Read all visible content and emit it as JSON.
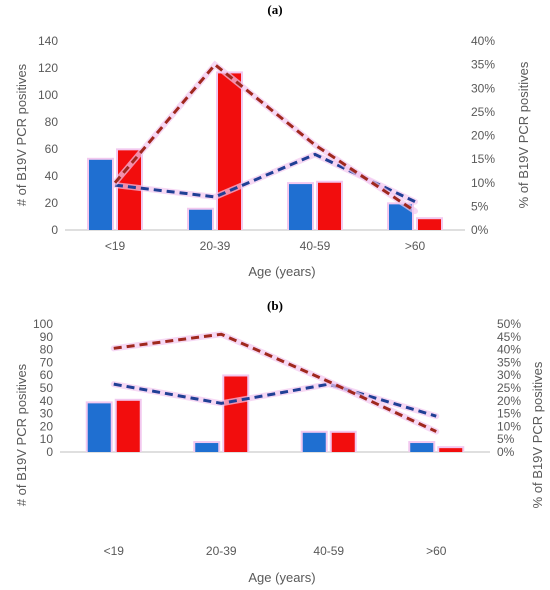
{
  "colors": {
    "count_bar_1": "#1f6fd1",
    "count_bar_2": "#f20d0d",
    "pct_line_1": "#203f95",
    "pct_line_2": "#a0281e",
    "bar_glow": "#f2c8ef",
    "axis": "#bfbfbf"
  },
  "chart_data": [
    {
      "type": "bar",
      "panel_label": "(a)",
      "categories": [
        "<19",
        "20-39",
        "40-59",
        ">60"
      ],
      "xlabel": "Age (years)",
      "ylabel": "# of B19V  PCR positives",
      "ylabel2": "% of B19V PCR positives",
      "ylim": [
        0,
        140
      ],
      "yticks": [
        0,
        20,
        40,
        60,
        80,
        100,
        120,
        140
      ],
      "ylim2": [
        0,
        40
      ],
      "yticks2": [
        "0%",
        "5%",
        "10%",
        "15%",
        "20%",
        "25%",
        "30%",
        "35%",
        "40%"
      ],
      "series": [
        {
          "type": "bar",
          "color": "#1f6fd1",
          "values": [
            52,
            15,
            34,
            19
          ]
        },
        {
          "type": "bar",
          "color": "#f20d0d",
          "values": [
            59,
            116,
            35,
            8
          ]
        },
        {
          "type": "line",
          "axis": "secondary",
          "dashed": true,
          "color": "#203f95",
          "values": [
            9.5,
            7.0,
            16.0,
            6.0
          ]
        },
        {
          "type": "line",
          "axis": "secondary",
          "dashed": true,
          "color": "#a0281e",
          "values": [
            10.0,
            35.0,
            18.0,
            4.0
          ]
        }
      ]
    },
    {
      "type": "bar",
      "panel_label": "(b)",
      "categories": [
        "<19",
        "20-39",
        "40-59",
        ">60"
      ],
      "xlabel": "Age (years)",
      "ylabel": "# of B19V  PCR positives",
      "ylabel2": "% of B19V PCR positives",
      "ylim": [
        0,
        100
      ],
      "yticks": [
        0,
        10,
        20,
        30,
        40,
        50,
        60,
        70,
        80,
        90,
        100
      ],
      "ylim2": [
        0,
        50
      ],
      "yticks2": [
        "0%",
        "5%",
        "10%",
        "15%",
        "20%",
        "25%",
        "30%",
        "35%",
        "40%",
        "45%",
        "50%"
      ],
      "series": [
        {
          "type": "bar",
          "color": "#1f6fd1",
          "values": [
            38,
            7,
            15,
            7
          ]
        },
        {
          "type": "bar",
          "color": "#f20d0d",
          "values": [
            40,
            59,
            15,
            3
          ]
        },
        {
          "type": "line",
          "axis": "secondary",
          "dashed": true,
          "color": "#203f95",
          "values": [
            26.5,
            19.0,
            26.5,
            14.0
          ]
        },
        {
          "type": "line",
          "axis": "secondary",
          "dashed": true,
          "color": "#a0281e",
          "values": [
            40.5,
            46.0,
            27.5,
            8.0
          ]
        }
      ]
    }
  ]
}
